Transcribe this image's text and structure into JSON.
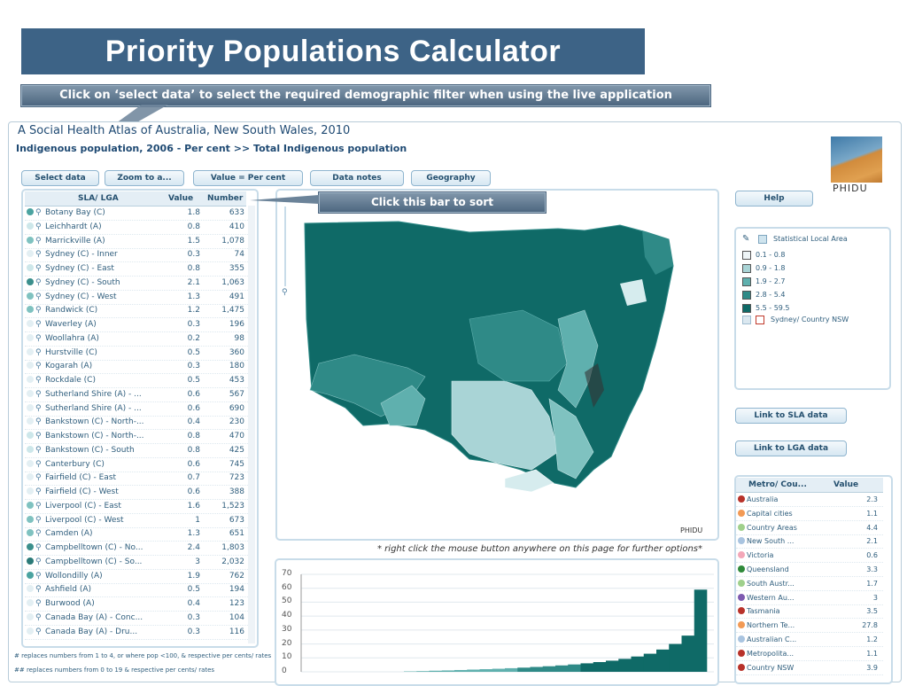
{
  "title": "Priority Populations Calculator",
  "callout_top": "Click on ‘select data’ to select the required demographic filter when using the live application",
  "callout_sort": "Click  this bar to sort",
  "atlas_title": "A Social Health Atlas of Australia, New South Wales, 2010",
  "atlas_subtitle": "Indigenous population, 2006 - Per cent >> Total Indigenous population",
  "toolbar": {
    "select_data": "Select data",
    "zoom_to": "Zoom to a...",
    "value_mode": "Value = Per cent",
    "data_notes": "Data notes",
    "geography": "Geography"
  },
  "help": "Help",
  "logo_text": "PHIDU",
  "map_credit": "PHIDU",
  "right_click_note": "* right click the mouse button anywhere on this page for further options*",
  "table": {
    "headers": [
      "SLA/ LGA",
      "Value",
      "Number"
    ],
    "rows": [
      {
        "name": "Botany Bay (C)",
        "value": "1.8",
        "number": "633",
        "dot": "#4aa3a0"
      },
      {
        "name": "Leichhardt (A)",
        "value": "0.8",
        "number": "410",
        "dot": "#cde7ea"
      },
      {
        "name": "Marrickville (A)",
        "value": "1.5",
        "number": "1,078",
        "dot": "#7fc2c0"
      },
      {
        "name": "Sydney (C) - Inner",
        "value": "0.3",
        "number": "74",
        "dot": "#e3eff3"
      },
      {
        "name": "Sydney (C) - East",
        "value": "0.8",
        "number": "355",
        "dot": "#cde7ea"
      },
      {
        "name": "Sydney (C) - South",
        "value": "2.1",
        "number": "1,063",
        "dot": "#3a8f8c"
      },
      {
        "name": "Sydney (C) - West",
        "value": "1.3",
        "number": "491",
        "dot": "#7fc2c0"
      },
      {
        "name": "Randwick (C)",
        "value": "1.2",
        "number": "1,475",
        "dot": "#7fc2c0"
      },
      {
        "name": "Waverley (A)",
        "value": "0.3",
        "number": "196",
        "dot": "#e3eff3"
      },
      {
        "name": "Woollahra (A)",
        "value": "0.2",
        "number": "98",
        "dot": "#e3eff3"
      },
      {
        "name": "Hurstville (C)",
        "value": "0.5",
        "number": "360",
        "dot": "#e3eff3"
      },
      {
        "name": "Kogarah (A)",
        "value": "0.3",
        "number": "180",
        "dot": "#e3eff3"
      },
      {
        "name": "Rockdale (C)",
        "value": "0.5",
        "number": "453",
        "dot": "#e3eff3"
      },
      {
        "name": "Sutherland Shire (A) - ...",
        "value": "0.6",
        "number": "567",
        "dot": "#e3eff3"
      },
      {
        "name": "Sutherland Shire (A) - ...",
        "value": "0.6",
        "number": "690",
        "dot": "#e3eff3"
      },
      {
        "name": "Bankstown (C) - North-...",
        "value": "0.4",
        "number": "230",
        "dot": "#e3eff3"
      },
      {
        "name": "Bankstown (C) - North-...",
        "value": "0.8",
        "number": "470",
        "dot": "#cde7ea"
      },
      {
        "name": "Bankstown (C) - South",
        "value": "0.8",
        "number": "425",
        "dot": "#cde7ea"
      },
      {
        "name": "Canterbury (C)",
        "value": "0.6",
        "number": "745",
        "dot": "#e3eff3"
      },
      {
        "name": "Fairfield (C) - East",
        "value": "0.7",
        "number": "723",
        "dot": "#e3eff3"
      },
      {
        "name": "Fairfield (C) - West",
        "value": "0.6",
        "number": "388",
        "dot": "#e3eff3"
      },
      {
        "name": "Liverpool (C) - East",
        "value": "1.6",
        "number": "1,523",
        "dot": "#7fc2c0"
      },
      {
        "name": "Liverpool (C) - West",
        "value": "1",
        "number": "673",
        "dot": "#7fc2c0"
      },
      {
        "name": "Camden (A)",
        "value": "1.3",
        "number": "651",
        "dot": "#7fc2c0"
      },
      {
        "name": "Campbelltown (C) - No...",
        "value": "2.4",
        "number": "1,803",
        "dot": "#3a8f8c"
      },
      {
        "name": "Campbelltown (C) - So...",
        "value": "3",
        "number": "2,032",
        "dot": "#2a7a78"
      },
      {
        "name": "Wollondilly (A)",
        "value": "1.9",
        "number": "762",
        "dot": "#4aa3a0"
      },
      {
        "name": "Ashfield (A)",
        "value": "0.5",
        "number": "194",
        "dot": "#e3eff3"
      },
      {
        "name": "Burwood (A)",
        "value": "0.4",
        "number": "123",
        "dot": "#e3eff3"
      },
      {
        "name": "Canada Bay (A) - Conc...",
        "value": "0.3",
        "number": "104",
        "dot": "#e3eff3"
      },
      {
        "name": "Canada Bay (A) - Dru...",
        "value": "0.3",
        "number": "116",
        "dot": "#e3eff3"
      }
    ]
  },
  "footnotes": [
    "# replaces numbers from 1 to 4, or where pop <100, & respective per cents/ rates",
    "## replaces numbers from 0 to 19 & respective per cents/ rates"
  ],
  "legend": {
    "title": "Statistical Local Area",
    "classes": [
      {
        "label": "0.1 - 0.8",
        "color": "#eef4f6"
      },
      {
        "label": "0.9 - 1.8",
        "color": "#a9d4d6"
      },
      {
        "label": "1.9 - 2.7",
        "color": "#5fb0ae"
      },
      {
        "label": "2.8 - 5.4",
        "color": "#2f8a87"
      },
      {
        "label": "5.5 - 59.5",
        "color": "#0f6a67"
      }
    ],
    "boundary": "Sydney/ Country NSW"
  },
  "links": {
    "sla": "Link to SLA data",
    "lga": "Link to LGA data"
  },
  "metro": {
    "headers": [
      "Metro/ Cou...",
      "Value"
    ],
    "rows": [
      {
        "name": "Australia",
        "value": "2.3",
        "dot": "#b8322a"
      },
      {
        "name": "Capital cities",
        "value": "1.1",
        "dot": "#f29a55"
      },
      {
        "name": "Country Areas",
        "value": "4.4",
        "dot": "#9fd08c"
      },
      {
        "name": "New South ...",
        "value": "2.1",
        "dot": "#a9c4e0"
      },
      {
        "name": "Victoria",
        "value": "0.6",
        "dot": "#f3a7b8"
      },
      {
        "name": "Queensland",
        "value": "3.3",
        "dot": "#2f8a3a"
      },
      {
        "name": "South Austr...",
        "value": "1.7",
        "dot": "#9fd08c"
      },
      {
        "name": "Western Au...",
        "value": "3",
        "dot": "#7d5ab0"
      },
      {
        "name": "Tasmania",
        "value": "3.5",
        "dot": "#b8322a"
      },
      {
        "name": "Northern Te...",
        "value": "27.8",
        "dot": "#f29a55"
      },
      {
        "name": "Australian C...",
        "value": "1.2",
        "dot": "#a9c4e0"
      },
      {
        "name": "Metropolita...",
        "value": "1.1",
        "dot": "#b8322a"
      },
      {
        "name": "Country NSW",
        "value": "3.9",
        "dot": "#b8322a"
      }
    ]
  },
  "chart_data": {
    "type": "bar",
    "yticks": [
      0,
      10,
      20,
      30,
      40,
      50,
      60,
      70
    ],
    "ylim": [
      0,
      70
    ],
    "series_tail": [
      0.3,
      0.5,
      0.8,
      1.0,
      1.3,
      1.6,
      1.9,
      2.2,
      2.6,
      3.0,
      3.5,
      4.0,
      4.6,
      5.3,
      6.1,
      7.0,
      8.0,
      9.3,
      11,
      13,
      16,
      20,
      26,
      59
    ]
  }
}
